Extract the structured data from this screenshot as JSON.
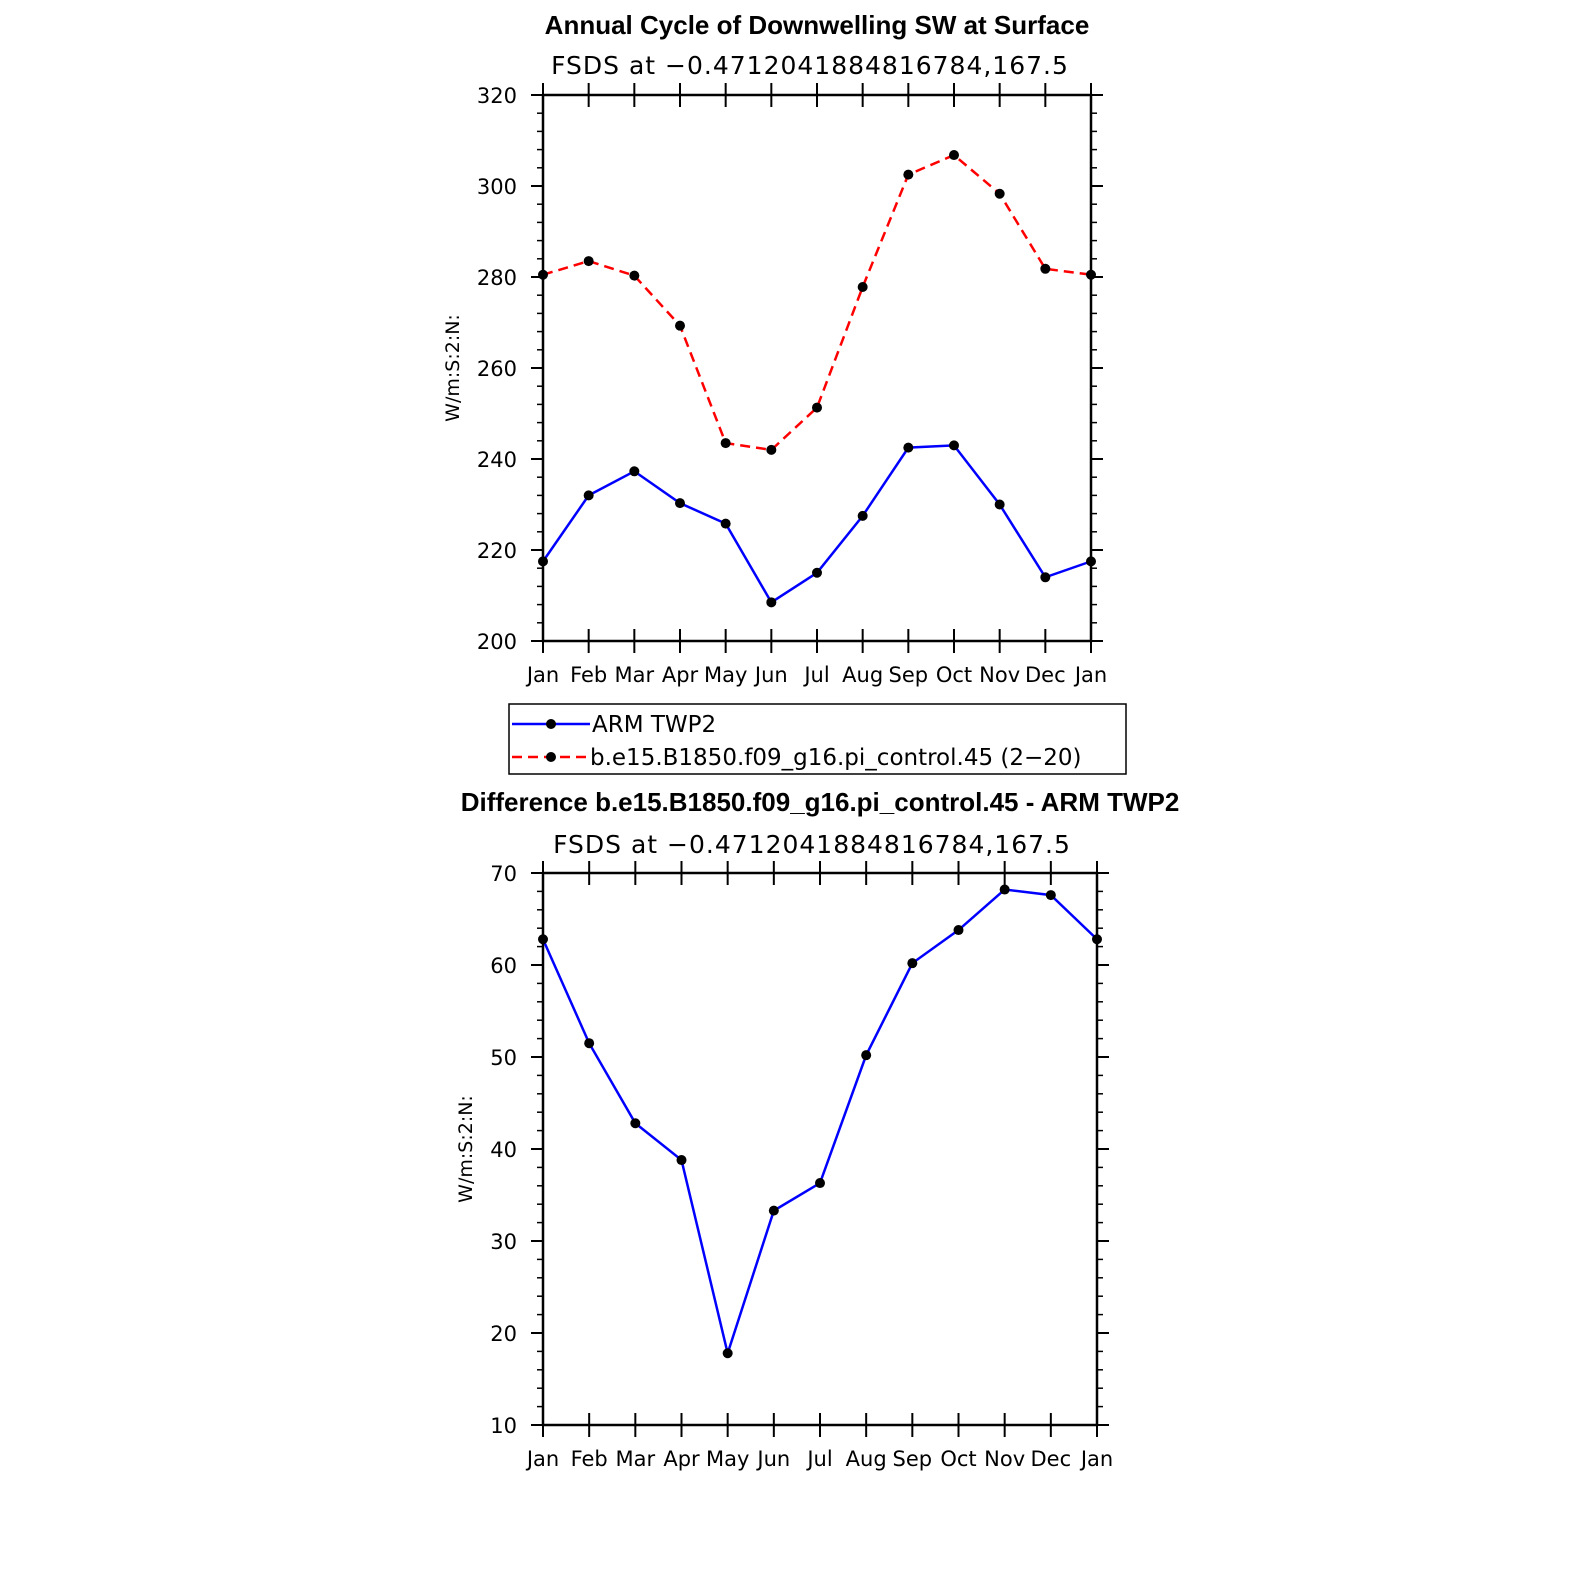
{
  "chart_data": [
    {
      "type": "line",
      "title": "Annual Cycle of Downwelling SW at Surface",
      "subtitle": "FSDS at −0.4712041884816784,167.5",
      "ylabel": "W/m:S:2:N:",
      "xlabel": "",
      "categories": [
        "Jan",
        "Feb",
        "Mar",
        "Apr",
        "May",
        "Jun",
        "Jul",
        "Aug",
        "Sep",
        "Oct",
        "Nov",
        "Dec",
        "Jan"
      ],
      "ylim": [
        200,
        320
      ],
      "yticks": [
        200,
        220,
        240,
        260,
        280,
        300,
        320
      ],
      "series": [
        {
          "name": "ARM TWP2",
          "color": "#0000ff",
          "dash": "solid",
          "values": [
            217.5,
            232,
            237.3,
            230.3,
            225.8,
            208.5,
            215,
            227.5,
            242.5,
            243,
            230,
            214,
            217.5
          ]
        },
        {
          "name": "b.e15.B1850.f09_g16.pi_control.45 (2−20)",
          "color": "#ff0000",
          "dash": "dashed",
          "values": [
            280.5,
            283.5,
            280.3,
            269.3,
            243.5,
            242,
            251.3,
            277.8,
            302.5,
            306.8,
            298.3,
            281.8,
            280.5
          ]
        }
      ],
      "legend_position": "below"
    },
    {
      "type": "line",
      "title": "Difference b.e15.B1850.f09_g16.pi_control.45 - ARM TWP2",
      "subtitle": "FSDS at −0.4712041884816784,167.5",
      "ylabel": "W/m:S:2:N:",
      "xlabel": "",
      "categories": [
        "Jan",
        "Feb",
        "Mar",
        "Apr",
        "May",
        "Jun",
        "Jul",
        "Aug",
        "Sep",
        "Oct",
        "Nov",
        "Dec",
        "Jan"
      ],
      "ylim": [
        10,
        70
      ],
      "yticks": [
        10,
        20,
        30,
        40,
        50,
        60,
        70
      ],
      "series": [
        {
          "color": "#0000ff",
          "dash": "solid",
          "values": [
            62.8,
            51.5,
            42.8,
            38.8,
            17.8,
            33.3,
            36.3,
            50.2,
            60.2,
            63.8,
            68.2,
            67.6,
            62.8
          ]
        }
      ]
    }
  ]
}
